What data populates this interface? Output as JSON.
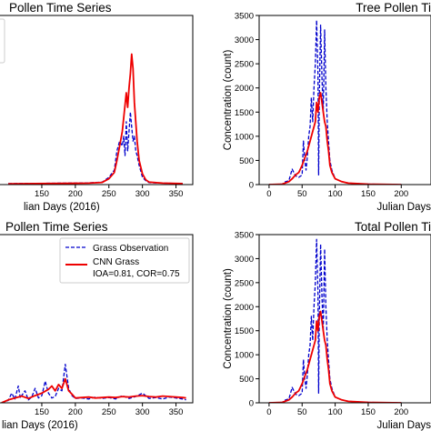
{
  "chart_data": [
    {
      "type": "line",
      "title": "Pollen Time Series",
      "xlabel": "lian Days (2016)",
      "ylabel": "",
      "xlim": [
        85,
        375
      ],
      "ylim": [
        0,
        3500
      ],
      "xticks": [
        150,
        200,
        250,
        300,
        350
      ],
      "yticks": [],
      "legend": "top-left (cropped)",
      "series": [
        {
          "color": "#0000cc",
          "style": "dashed",
          "x": [
            100,
            140,
            180,
            220,
            240,
            250,
            258,
            262,
            266,
            270,
            272,
            274,
            276,
            278,
            280,
            282,
            284,
            286,
            288,
            290,
            292,
            295,
            300,
            305,
            310,
            330,
            360
          ],
          "y": [
            20,
            25,
            30,
            35,
            50,
            150,
            300,
            700,
            900,
            800,
            1000,
            600,
            1300,
            700,
            1100,
            1500,
            1200,
            900,
            1000,
            700,
            600,
            400,
            150,
            80,
            40,
            30,
            20
          ]
        },
        {
          "color": "#ee0000",
          "style": "solid",
          "x": [
            100,
            140,
            180,
            220,
            240,
            250,
            258,
            262,
            266,
            270,
            273,
            276,
            278,
            280,
            282,
            284,
            286,
            288,
            290,
            292,
            295,
            300,
            305,
            310,
            330,
            360
          ],
          "y": [
            15,
            20,
            25,
            30,
            45,
            120,
            250,
            500,
            800,
            1100,
            1500,
            1900,
            1600,
            2000,
            2300,
            2700,
            2400,
            1700,
            1300,
            900,
            500,
            220,
            100,
            50,
            30,
            20
          ]
        }
      ]
    },
    {
      "type": "line",
      "title": "Tree Pollen Ti",
      "xlabel": "Julian Days",
      "ylabel": "Concentration (count)",
      "xlim": [
        -15,
        245
      ],
      "ylim": [
        0,
        3500
      ],
      "xticks": [
        0,
        50,
        100,
        150,
        200
      ],
      "yticks": [
        0,
        500,
        1000,
        1500,
        2000,
        2500,
        3000,
        3500
      ],
      "series": [
        {
          "color": "#0000cc",
          "style": "dashed",
          "x": [
            0,
            20,
            25,
            30,
            35,
            40,
            45,
            50,
            52,
            54,
            56,
            58,
            60,
            62,
            64,
            66,
            68,
            70,
            72,
            74,
            75,
            76,
            77,
            78,
            80,
            82,
            84,
            86,
            88,
            90,
            92,
            95,
            100,
            110,
            120,
            150,
            200
          ],
          "y": [
            0,
            10,
            60,
            80,
            320,
            180,
            150,
            200,
            900,
            500,
            300,
            600,
            1000,
            1200,
            1800,
            1300,
            2000,
            2500,
            3400,
            2300,
            200,
            1700,
            2600,
            3300,
            2200,
            1500,
            3200,
            2000,
            1300,
            900,
            500,
            300,
            120,
            60,
            30,
            10,
            0
          ]
        },
        {
          "color": "#ee0000",
          "style": "solid",
          "x": [
            0,
            20,
            30,
            35,
            40,
            45,
            50,
            54,
            58,
            62,
            66,
            70,
            72,
            74,
            76,
            78,
            80,
            82,
            84,
            86,
            88,
            90,
            92,
            95,
            100,
            110,
            120,
            150,
            200
          ],
          "y": [
            0,
            10,
            60,
            120,
            200,
            250,
            400,
            550,
            700,
            900,
            1100,
            1300,
            1700,
            1500,
            1800,
            1900,
            1700,
            1500,
            1300,
            1200,
            900,
            700,
            400,
            250,
            120,
            60,
            30,
            10,
            0
          ]
        }
      ]
    },
    {
      "type": "line",
      "title": "Pollen Time Series",
      "xlabel": "lian Days (2016)",
      "ylabel": "",
      "xlim": [
        85,
        375
      ],
      "ylim": [
        0,
        3500
      ],
      "xticks": [
        150,
        200,
        250,
        300,
        350
      ],
      "yticks": [],
      "legend": "top-right",
      "series": [
        {
          "name": "Grass Observation",
          "color": "#0000cc",
          "style": "dashed",
          "x": [
            90,
            100,
            105,
            110,
            115,
            118,
            120,
            125,
            130,
            135,
            140,
            145,
            150,
            155,
            160,
            165,
            170,
            175,
            180,
            185,
            190,
            195,
            200,
            210,
            220,
            230,
            240,
            250,
            260,
            270,
            280,
            290,
            300,
            310,
            320,
            330,
            340,
            350,
            360,
            365
          ],
          "y": [
            0,
            50,
            200,
            80,
            350,
            100,
            150,
            250,
            60,
            120,
            300,
            100,
            150,
            450,
            200,
            100,
            130,
            300,
            250,
            800,
            300,
            150,
            90,
            100,
            80,
            120,
            90,
            110,
            80,
            150,
            90,
            130,
            200,
            90,
            110,
            80,
            120,
            100,
            80,
            60
          ]
        },
        {
          "name": "CNN Grass",
          "name2": "IOA=0.81, COR=0.75",
          "color": "#ee0000",
          "style": "solid",
          "x": [
            90,
            100,
            110,
            120,
            130,
            140,
            150,
            160,
            165,
            170,
            175,
            180,
            185,
            190,
            195,
            200,
            210,
            220,
            230,
            240,
            250,
            260,
            270,
            280,
            290,
            300,
            310,
            320,
            330,
            340,
            350,
            360,
            365
          ],
          "y": [
            0,
            60,
            100,
            140,
            90,
            150,
            200,
            280,
            350,
            250,
            380,
            300,
            500,
            250,
            180,
            100,
            110,
            120,
            100,
            110,
            120,
            110,
            130,
            120,
            140,
            150,
            130,
            120,
            140,
            130,
            120,
            110,
            100
          ]
        }
      ]
    },
    {
      "type": "line",
      "title": "Total Pollen Ti",
      "xlabel": "Julian Days",
      "ylabel": "Concentration (count)",
      "xlim": [
        -15,
        245
      ],
      "ylim": [
        0,
        3500
      ],
      "xticks": [
        0,
        50,
        100,
        150,
        200
      ],
      "yticks": [
        0,
        500,
        1000,
        1500,
        2000,
        2500,
        3000,
        3500
      ],
      "series": [
        {
          "color": "#0000cc",
          "style": "dashed",
          "x": [
            0,
            20,
            25,
            30,
            35,
            40,
            45,
            50,
            52,
            54,
            56,
            58,
            60,
            62,
            64,
            66,
            68,
            70,
            72,
            74,
            75,
            76,
            77,
            78,
            80,
            82,
            84,
            86,
            88,
            90,
            92,
            95,
            100,
            110,
            120,
            150,
            200
          ],
          "y": [
            0,
            10,
            60,
            80,
            320,
            180,
            150,
            200,
            900,
            500,
            300,
            600,
            1000,
            1200,
            1800,
            1300,
            2000,
            2500,
            3400,
            2300,
            200,
            1700,
            2600,
            3300,
            2200,
            1500,
            3200,
            2000,
            1300,
            900,
            500,
            300,
            120,
            60,
            30,
            10,
            0
          ]
        },
        {
          "color": "#ee0000",
          "style": "solid",
          "x": [
            0,
            20,
            30,
            35,
            40,
            45,
            50,
            54,
            58,
            62,
            66,
            70,
            72,
            74,
            76,
            78,
            80,
            82,
            84,
            86,
            88,
            90,
            92,
            95,
            100,
            110,
            120,
            150,
            200
          ],
          "y": [
            0,
            10,
            60,
            120,
            200,
            250,
            400,
            550,
            700,
            900,
            1100,
            1300,
            1700,
            1500,
            1800,
            1900,
            1700,
            1500,
            1300,
            1200,
            900,
            700,
            400,
            250,
            120,
            60,
            30,
            10,
            0
          ]
        }
      ]
    }
  ]
}
